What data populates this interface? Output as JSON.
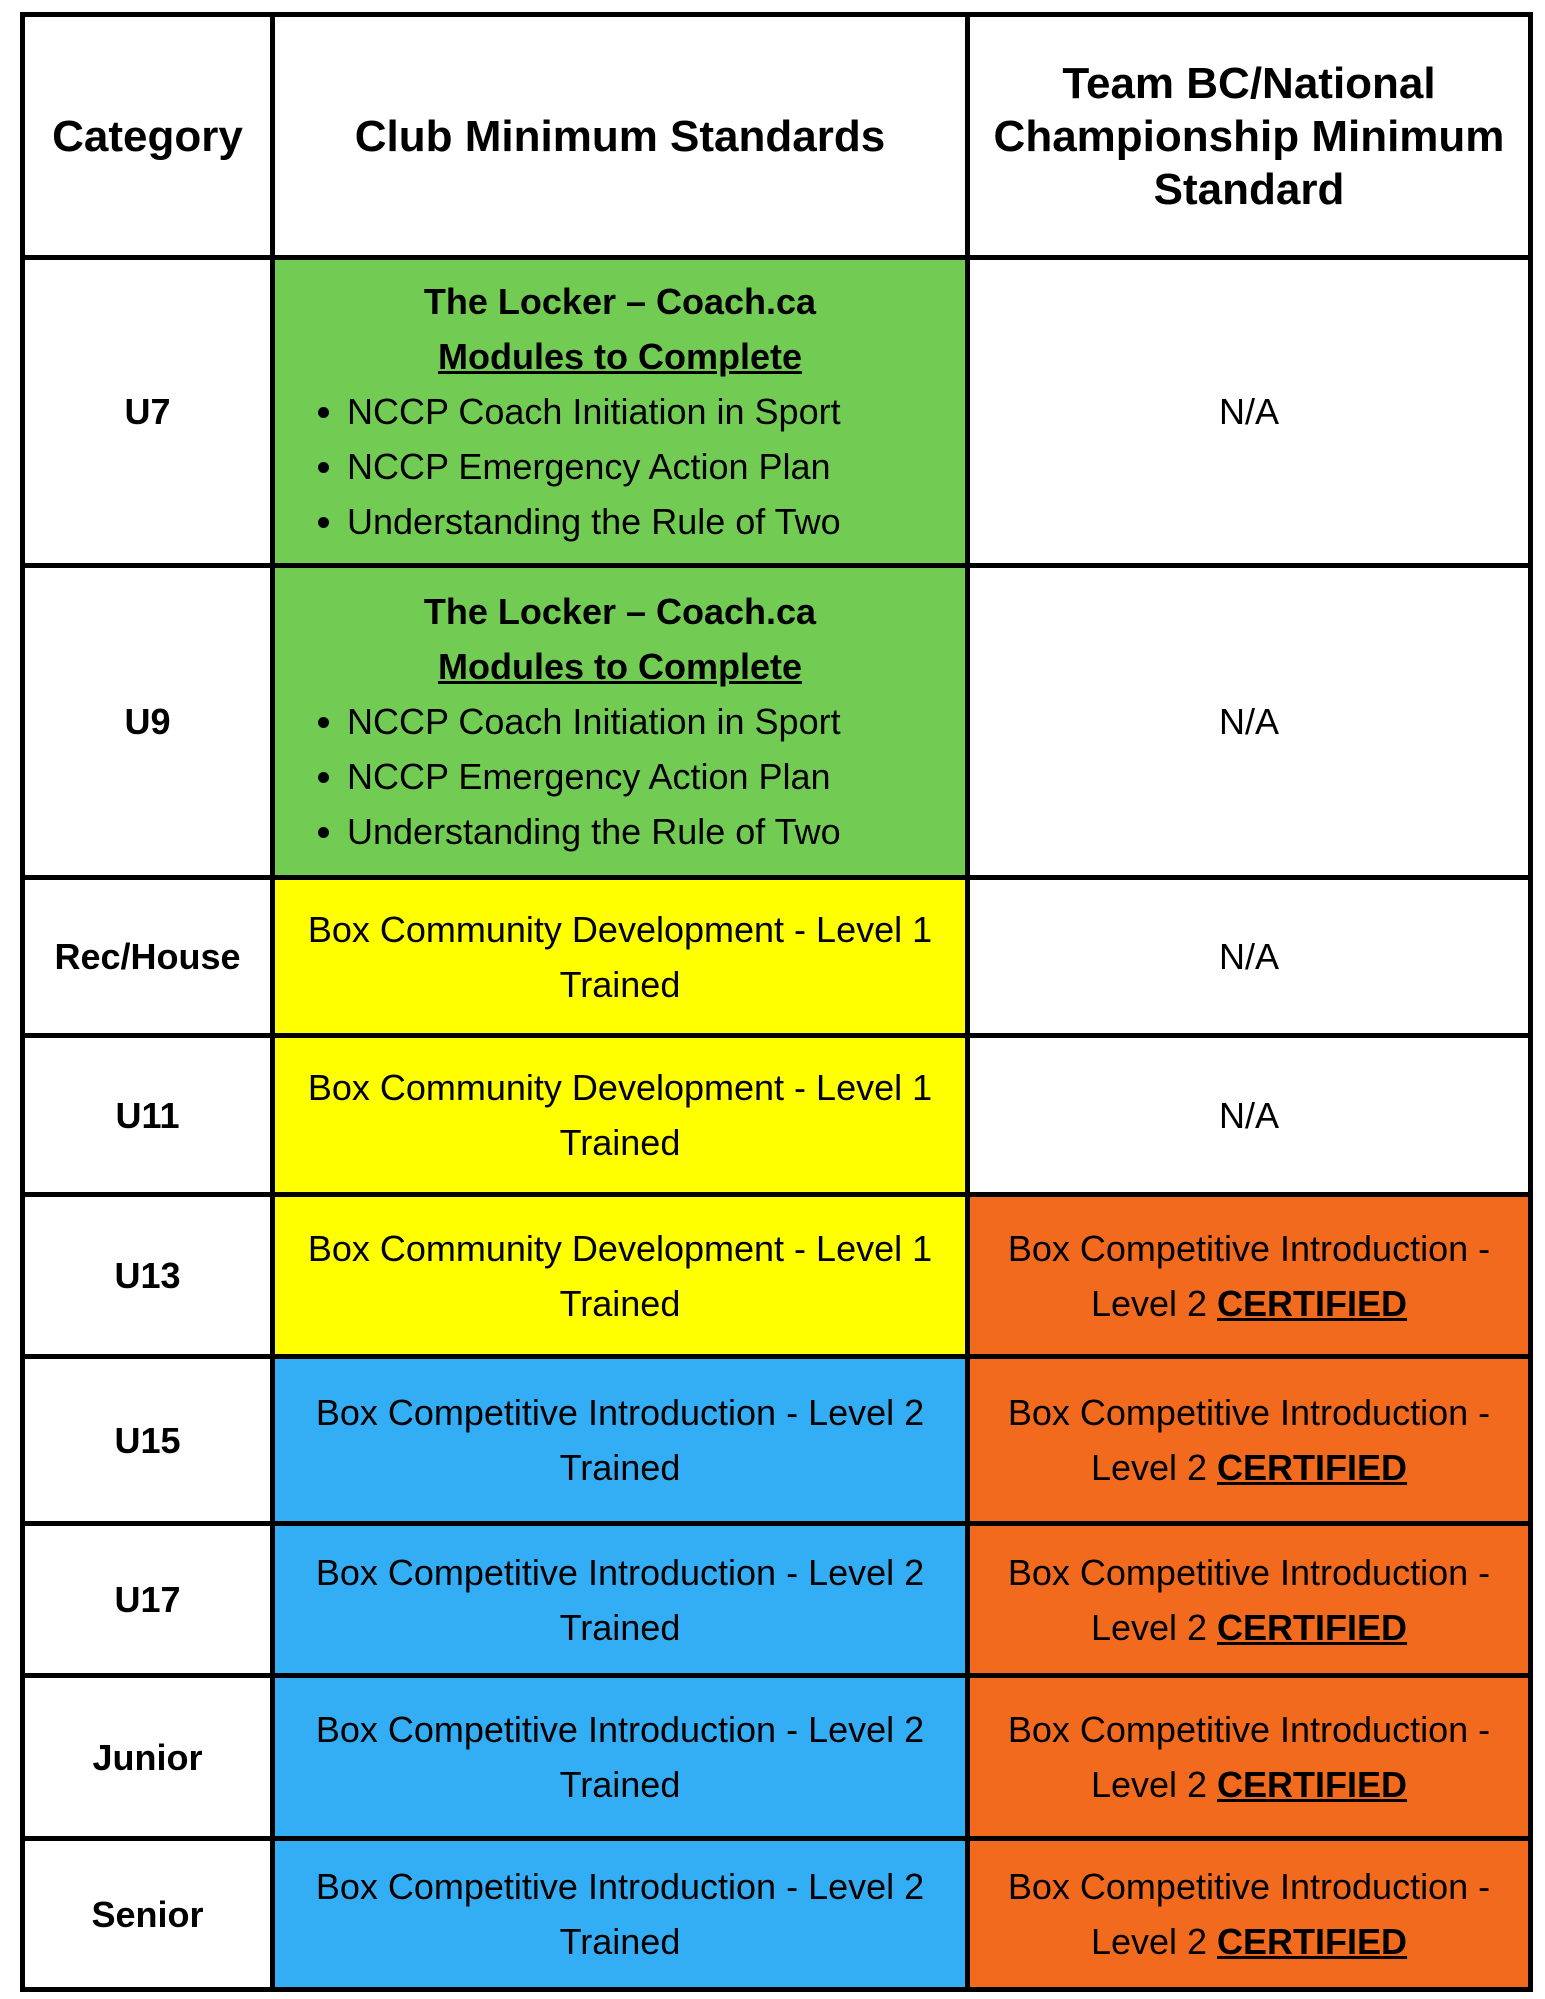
{
  "colors": {
    "green": "#72CB53",
    "yellow": "#FFFF00",
    "blue": "#33AEF5",
    "orange": "#F26A1E",
    "white": "#FFFFFF",
    "border": "#000000",
    "text": "#000000"
  },
  "header": {
    "category": "Category",
    "club": "Club Minimum Standards",
    "team": "Team BC/National Championship Minimum Standard"
  },
  "rows": [
    {
      "category": "U7",
      "club": {
        "kind": "modules",
        "bg": "green",
        "title": "The Locker – Coach.ca",
        "subtitle": "Modules to Complete",
        "bullets": [
          "NCCP Coach Initiation in Sport",
          "NCCP Emergency Action Plan",
          "Understanding the Rule of Two"
        ]
      },
      "team": {
        "kind": "plain",
        "bg": "white",
        "text": "N/A"
      }
    },
    {
      "category": "U9",
      "club": {
        "kind": "modules",
        "bg": "green",
        "title": "The Locker – Coach.ca",
        "subtitle": "Modules to Complete",
        "bullets": [
          "NCCP Coach Initiation in Sport",
          "NCCP Emergency Action Plan",
          "Understanding the Rule of Two"
        ]
      },
      "team": {
        "kind": "plain",
        "bg": "white",
        "text": "N/A"
      }
    },
    {
      "category": "Rec/House",
      "club": {
        "kind": "plain",
        "bg": "yellow",
        "text": "Box Community Development - Level 1 Trained"
      },
      "team": {
        "kind": "plain",
        "bg": "white",
        "text": "N/A"
      }
    },
    {
      "category": "U11",
      "club": {
        "kind": "plain",
        "bg": "yellow",
        "text": "Box Community Development - Level 1 Trained"
      },
      "team": {
        "kind": "plain",
        "bg": "white",
        "text": "N/A"
      }
    },
    {
      "category": "U13",
      "club": {
        "kind": "plain",
        "bg": "yellow",
        "text": "Box Community Development - Level 1 Trained"
      },
      "team": {
        "kind": "certified",
        "bg": "orange",
        "prefix": "Box Competitive Introduction - Level 2",
        "emphasis": "CERTIFIED"
      }
    },
    {
      "category": "U15",
      "club": {
        "kind": "plain",
        "bg": "blue",
        "text": "Box Competitive Introduction - Level 2 Trained"
      },
      "team": {
        "kind": "certified",
        "bg": "orange",
        "prefix": "Box Competitive Introduction - Level 2",
        "emphasis": "CERTIFIED"
      }
    },
    {
      "category": "U17",
      "club": {
        "kind": "plain",
        "bg": "blue",
        "text": "Box Competitive Introduction - Level 2 Trained"
      },
      "team": {
        "kind": "certified",
        "bg": "orange",
        "prefix": "Box Competitive Introduction - Level 2",
        "emphasis": "CERTIFIED"
      }
    },
    {
      "category": "Junior",
      "club": {
        "kind": "plain",
        "bg": "blue",
        "text": "Box Competitive Introduction - Level 2 Trained"
      },
      "team": {
        "kind": "certified",
        "bg": "orange",
        "prefix": "Box Competitive Introduction - Level 2",
        "emphasis": "CERTIFIED"
      }
    },
    {
      "category": "Senior",
      "club": {
        "kind": "plain",
        "bg": "blue",
        "text": "Box Competitive Introduction - Level 2 Trained"
      },
      "team": {
        "kind": "certified",
        "bg": "orange",
        "prefix": "Box Competitive Introduction - Level 2",
        "emphasis": "CERTIFIED"
      }
    }
  ]
}
